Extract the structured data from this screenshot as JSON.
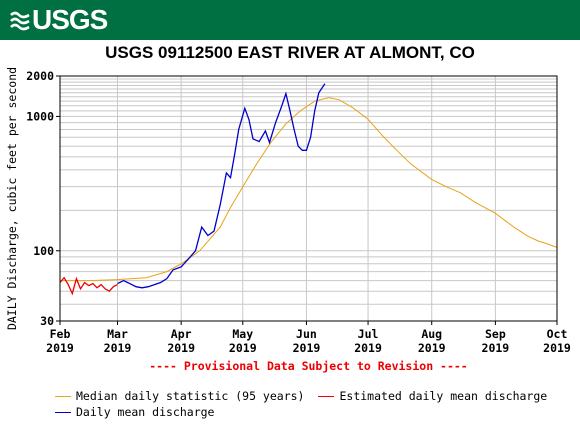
{
  "header": {
    "logo_text": "USGS"
  },
  "chart_data": {
    "type": "line",
    "title": "USGS 09112500 EAST RIVER AT ALMONT, CO",
    "ylabel": "DAILY Discharge, cubic feet per second",
    "yscale": "log",
    "ylim": [
      30,
      2000
    ],
    "y_ticks": [
      {
        "value": 30,
        "label": "30"
      },
      {
        "value": 100,
        "label": "100"
      },
      {
        "value": 1000,
        "label": "1000"
      },
      {
        "value": 2000,
        "label": "2000"
      }
    ],
    "xlim": [
      "2019-02-01",
      "2019-10-01"
    ],
    "x_ticks": [
      {
        "date": "2019-02-01",
        "month": "Feb",
        "year": "2019"
      },
      {
        "date": "2019-03-01",
        "month": "Mar",
        "year": "2019"
      },
      {
        "date": "2019-04-01",
        "month": "Apr",
        "year": "2019"
      },
      {
        "date": "2019-05-01",
        "month": "May",
        "year": "2019"
      },
      {
        "date": "2019-06-01",
        "month": "Jun",
        "year": "2019"
      },
      {
        "date": "2019-07-01",
        "month": "Jul",
        "year": "2019"
      },
      {
        "date": "2019-08-01",
        "month": "Aug",
        "year": "2019"
      },
      {
        "date": "2019-09-01",
        "month": "Sep",
        "year": "2019"
      },
      {
        "date": "2019-10-01",
        "month": "Oct",
        "year": "2019"
      }
    ],
    "grid": true,
    "annotation": "---- Provisional Data Subject to Revision ----",
    "series": [
      {
        "name": "Median daily statistic (95 years)",
        "color": "#e8a317",
        "points": [
          [
            "2019-02-01",
            60
          ],
          [
            "2019-02-15",
            60
          ],
          [
            "2019-03-01",
            61
          ],
          [
            "2019-03-15",
            63
          ],
          [
            "2019-03-25",
            70
          ],
          [
            "2019-04-01",
            80
          ],
          [
            "2019-04-10",
            100
          ],
          [
            "2019-04-20",
            150
          ],
          [
            "2019-04-25",
            210
          ],
          [
            "2019-05-01",
            300
          ],
          [
            "2019-05-08",
            450
          ],
          [
            "2019-05-15",
            650
          ],
          [
            "2019-05-22",
            880
          ],
          [
            "2019-05-29",
            1100
          ],
          [
            "2019-06-05",
            1300
          ],
          [
            "2019-06-12",
            1380
          ],
          [
            "2019-06-17",
            1330
          ],
          [
            "2019-06-24",
            1150
          ],
          [
            "2019-07-01",
            950
          ],
          [
            "2019-07-08",
            720
          ],
          [
            "2019-07-15",
            560
          ],
          [
            "2019-07-22",
            440
          ],
          [
            "2019-08-01",
            340
          ],
          [
            "2019-08-08",
            300
          ],
          [
            "2019-08-15",
            270
          ],
          [
            "2019-08-22",
            230
          ],
          [
            "2019-09-01",
            190
          ],
          [
            "2019-09-10",
            150
          ],
          [
            "2019-09-17",
            128
          ],
          [
            "2019-09-22",
            118
          ],
          [
            "2019-09-26",
            113
          ],
          [
            "2019-10-01",
            106
          ]
        ]
      },
      {
        "name": "Estimated daily mean discharge",
        "color": "#ee0000",
        "points": [
          [
            "2019-02-01",
            58
          ],
          [
            "2019-02-03",
            63
          ],
          [
            "2019-02-05",
            56
          ],
          [
            "2019-02-07",
            48
          ],
          [
            "2019-02-09",
            62
          ],
          [
            "2019-02-11",
            52
          ],
          [
            "2019-02-13",
            58
          ],
          [
            "2019-02-15",
            55
          ],
          [
            "2019-02-17",
            57
          ],
          [
            "2019-02-19",
            53
          ],
          [
            "2019-02-21",
            56
          ],
          [
            "2019-02-23",
            52
          ],
          [
            "2019-02-25",
            50
          ],
          [
            "2019-02-27",
            54
          ],
          [
            "2019-03-01",
            56
          ]
        ]
      },
      {
        "name": "Daily mean discharge",
        "color": "#0000cc",
        "points": [
          [
            "2019-03-01",
            57
          ],
          [
            "2019-03-04",
            60
          ],
          [
            "2019-03-07",
            57
          ],
          [
            "2019-03-10",
            54
          ],
          [
            "2019-03-13",
            53
          ],
          [
            "2019-03-16",
            54
          ],
          [
            "2019-03-19",
            56
          ],
          [
            "2019-03-22",
            58
          ],
          [
            "2019-03-25",
            62
          ],
          [
            "2019-03-28",
            72
          ],
          [
            "2019-04-01",
            76
          ],
          [
            "2019-04-04",
            85
          ],
          [
            "2019-04-08",
            100
          ],
          [
            "2019-04-11",
            150
          ],
          [
            "2019-04-14",
            130
          ],
          [
            "2019-04-17",
            140
          ],
          [
            "2019-04-20",
            220
          ],
          [
            "2019-04-23",
            380
          ],
          [
            "2019-04-25",
            350
          ],
          [
            "2019-04-27",
            520
          ],
          [
            "2019-04-29",
            800
          ],
          [
            "2019-05-02",
            1150
          ],
          [
            "2019-05-04",
            950
          ],
          [
            "2019-05-06",
            680
          ],
          [
            "2019-05-09",
            650
          ],
          [
            "2019-05-12",
            780
          ],
          [
            "2019-05-14",
            640
          ],
          [
            "2019-05-17",
            900
          ],
          [
            "2019-05-20",
            1200
          ],
          [
            "2019-05-22",
            1480
          ],
          [
            "2019-05-24",
            1100
          ],
          [
            "2019-05-26",
            800
          ],
          [
            "2019-05-28",
            600
          ],
          [
            "2019-05-30",
            560
          ],
          [
            "2019-06-01",
            560
          ],
          [
            "2019-06-03",
            700
          ],
          [
            "2019-06-05",
            1100
          ],
          [
            "2019-06-07",
            1500
          ],
          [
            "2019-06-10",
            1750
          ]
        ]
      }
    ]
  }
}
